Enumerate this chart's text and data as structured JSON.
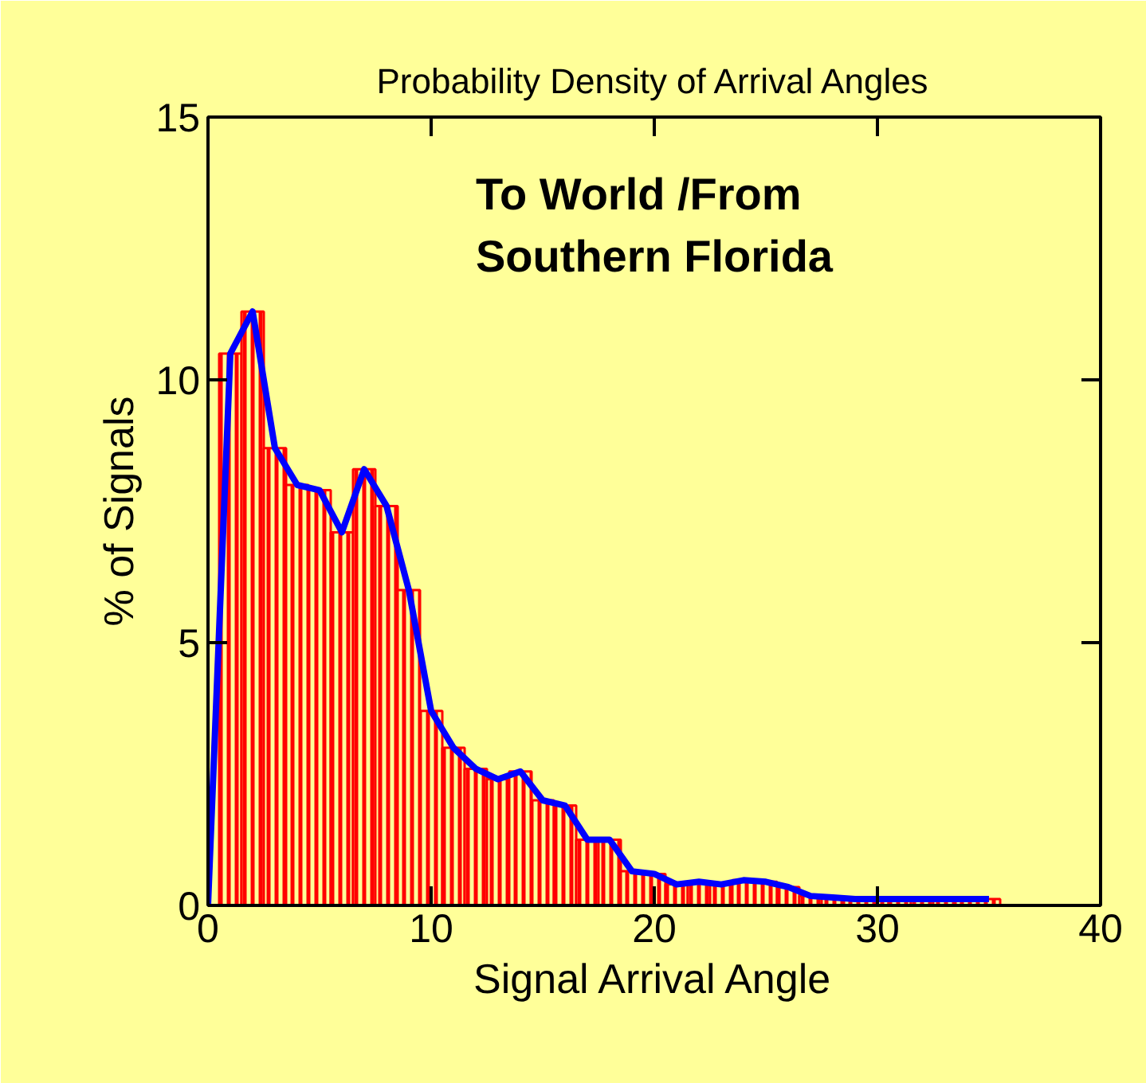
{
  "chart_data": {
    "type": "histogram",
    "title": "Probability Density of Arrival Angles",
    "xlabel": "Signal Arrival Angle",
    "ylabel": "% of Signals",
    "annotations": [
      "To World /From\nSouthern Florida"
    ],
    "xlim": [
      0,
      40
    ],
    "xticks": [
      0,
      10,
      20,
      30,
      40
    ],
    "ylim": [
      0,
      15
    ],
    "yticks": [
      0,
      5,
      10,
      15
    ],
    "grid": false,
    "series": [
      {
        "color": "#ff0000",
        "bins": [
          0.5,
          1.5,
          2.5,
          3.5,
          4.5,
          5.5,
          6.5,
          7.5,
          8.5,
          9.5,
          10.5,
          11.5,
          12.5,
          13.5,
          14.5,
          15.5,
          16.5,
          17.5,
          18.5,
          19.5,
          20.5,
          21.5,
          22.5,
          23.5,
          24.5,
          25.5,
          26.5,
          27.5,
          28.5,
          29.5,
          30.5,
          31.5,
          32.5,
          33.5,
          34.5,
          35.5
        ],
        "values": [
          10.5,
          11.3,
          8.7,
          8.0,
          7.9,
          7.1,
          8.3,
          7.6,
          6.0,
          3.7,
          3.0,
          2.6,
          2.4,
          2.55,
          2.0,
          1.9,
          1.25,
          1.25,
          0.65,
          0.6,
          0.4,
          0.45,
          0.4,
          0.48,
          0.45,
          0.35,
          0.18,
          0.15,
          0.12,
          0.12,
          0.12,
          0.12,
          0.12,
          0.12,
          0.12
        ]
      },
      {
        "type": "line",
        "color": "#0000ff",
        "x": [
          0,
          1,
          2,
          3,
          4,
          5,
          6,
          7,
          8,
          9,
          10,
          11,
          12,
          13,
          14,
          15,
          16,
          17,
          18,
          19,
          20,
          21,
          22,
          23,
          24,
          25,
          26,
          27,
          28,
          29,
          30,
          31,
          32,
          33,
          34,
          35
        ],
        "values": [
          0,
          10.5,
          11.3,
          8.7,
          8.0,
          7.9,
          7.1,
          8.3,
          7.6,
          6.0,
          3.7,
          3.0,
          2.6,
          2.4,
          2.55,
          2.0,
          1.9,
          1.25,
          1.25,
          0.65,
          0.6,
          0.4,
          0.45,
          0.4,
          0.48,
          0.45,
          0.35,
          0.18,
          0.15,
          0.12,
          0.12,
          0.12,
          0.12,
          0.12,
          0.12,
          0.12
        ]
      }
    ]
  }
}
